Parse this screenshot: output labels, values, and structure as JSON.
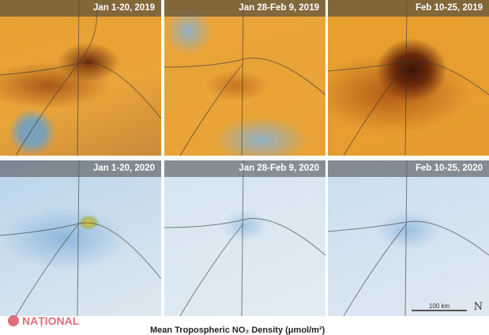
{
  "panels": [
    {
      "label": "Jan 1-20, 2019"
    },
    {
      "label": "Jan 28-Feb 9, 2019"
    },
    {
      "label": "Feb 10-25, 2019"
    },
    {
      "label": "Jan 1-20, 2020"
    },
    {
      "label": "Jan 28-Feb 9, 2020"
    },
    {
      "label": "Feb 10-25, 2020"
    }
  ],
  "scale_bar": "100 km",
  "north_label": "N",
  "watermark": "NAȚIONAL",
  "caption": "Mean Tropospheric NO₂ Density (μmol/m²)"
}
